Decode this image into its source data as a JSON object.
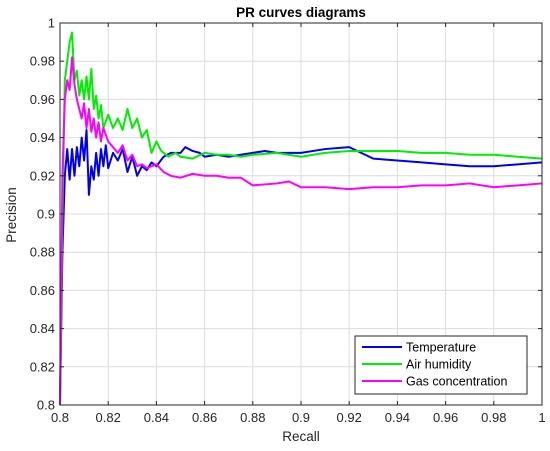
{
  "chart_data": {
    "type": "line",
    "title": "PR curves diagrams",
    "xlabel": "Recall",
    "ylabel": "Precision",
    "xlim": [
      0.8,
      1.0
    ],
    "ylim": [
      0.8,
      1.0
    ],
    "grid": true,
    "legend_position": "bottom-right",
    "x_ticks": [
      0.8,
      0.82,
      0.84,
      0.86,
      0.88,
      0.9,
      0.92,
      0.94,
      0.96,
      0.98,
      1.0
    ],
    "x_tick_labels": [
      "0.8",
      "0.82",
      "0.84",
      "0.86",
      "0.88",
      "0.9",
      "0.92",
      "0.94",
      "0.96",
      "0.98",
      "1"
    ],
    "y_ticks": [
      0.8,
      0.82,
      0.84,
      0.86,
      0.88,
      0.9,
      0.92,
      0.94,
      0.96,
      0.98,
      1.0
    ],
    "y_tick_labels": [
      "0.8",
      "0.82",
      "0.84",
      "0.86",
      "0.88",
      "0.9",
      "0.92",
      "0.94",
      "0.96",
      "0.98",
      "1"
    ],
    "series": [
      {
        "name": "Temperature",
        "color": "#0000ee",
        "points": [
          [
            0.8,
            0.8
          ],
          [
            0.801,
            0.88
          ],
          [
            0.802,
            0.92
          ],
          [
            0.803,
            0.934
          ],
          [
            0.804,
            0.918
          ],
          [
            0.805,
            0.934
          ],
          [
            0.806,
            0.92
          ],
          [
            0.807,
            0.935
          ],
          [
            0.808,
            0.925
          ],
          [
            0.809,
            0.94
          ],
          [
            0.81,
            0.928
          ],
          [
            0.811,
            0.944
          ],
          [
            0.812,
            0.91
          ],
          [
            0.813,
            0.925
          ],
          [
            0.814,
            0.918
          ],
          [
            0.815,
            0.932
          ],
          [
            0.816,
            0.92
          ],
          [
            0.817,
            0.934
          ],
          [
            0.818,
            0.925
          ],
          [
            0.819,
            0.936
          ],
          [
            0.82,
            0.924
          ],
          [
            0.822,
            0.932
          ],
          [
            0.824,
            0.928
          ],
          [
            0.826,
            0.934
          ],
          [
            0.828,
            0.922
          ],
          [
            0.83,
            0.93
          ],
          [
            0.832,
            0.92
          ],
          [
            0.834,
            0.925
          ],
          [
            0.836,
            0.923
          ],
          [
            0.838,
            0.927
          ],
          [
            0.84,
            0.925
          ],
          [
            0.843,
            0.93
          ],
          [
            0.846,
            0.932
          ],
          [
            0.85,
            0.932
          ],
          [
            0.852,
            0.935
          ],
          [
            0.855,
            0.933
          ],
          [
            0.858,
            0.932
          ],
          [
            0.86,
            0.93
          ],
          [
            0.865,
            0.931
          ],
          [
            0.87,
            0.93
          ],
          [
            0.875,
            0.931
          ],
          [
            0.88,
            0.932
          ],
          [
            0.885,
            0.933
          ],
          [
            0.89,
            0.932
          ],
          [
            0.9,
            0.932
          ],
          [
            0.91,
            0.934
          ],
          [
            0.92,
            0.935
          ],
          [
            0.925,
            0.932
          ],
          [
            0.93,
            0.929
          ],
          [
            0.94,
            0.928
          ],
          [
            0.95,
            0.927
          ],
          [
            0.96,
            0.926
          ],
          [
            0.97,
            0.925
          ],
          [
            0.98,
            0.925
          ],
          [
            0.99,
            0.926
          ],
          [
            1.0,
            0.927
          ]
        ]
      },
      {
        "name": "Air humidity",
        "color": "#00ee00",
        "points": [
          [
            0.8,
            0.8
          ],
          [
            0.801,
            0.9
          ],
          [
            0.802,
            0.97
          ],
          [
            0.803,
            0.98
          ],
          [
            0.804,
            0.99
          ],
          [
            0.805,
            0.995
          ],
          [
            0.806,
            0.97
          ],
          [
            0.807,
            0.975
          ],
          [
            0.808,
            0.962
          ],
          [
            0.809,
            0.97
          ],
          [
            0.81,
            0.96
          ],
          [
            0.811,
            0.972
          ],
          [
            0.812,
            0.96
          ],
          [
            0.813,
            0.976
          ],
          [
            0.814,
            0.955
          ],
          [
            0.815,
            0.962
          ],
          [
            0.816,
            0.95
          ],
          [
            0.817,
            0.957
          ],
          [
            0.818,
            0.945
          ],
          [
            0.82,
            0.952
          ],
          [
            0.822,
            0.945
          ],
          [
            0.824,
            0.95
          ],
          [
            0.826,
            0.944
          ],
          [
            0.828,
            0.955
          ],
          [
            0.83,
            0.945
          ],
          [
            0.832,
            0.95
          ],
          [
            0.834,
            0.94
          ],
          [
            0.836,
            0.944
          ],
          [
            0.838,
            0.932
          ],
          [
            0.84,
            0.938
          ],
          [
            0.842,
            0.933
          ],
          [
            0.845,
            0.93
          ],
          [
            0.848,
            0.932
          ],
          [
            0.85,
            0.93
          ],
          [
            0.855,
            0.929
          ],
          [
            0.86,
            0.932
          ],
          [
            0.865,
            0.931
          ],
          [
            0.87,
            0.931
          ],
          [
            0.875,
            0.93
          ],
          [
            0.88,
            0.931
          ],
          [
            0.89,
            0.932
          ],
          [
            0.9,
            0.93
          ],
          [
            0.91,
            0.932
          ],
          [
            0.92,
            0.933
          ],
          [
            0.93,
            0.933
          ],
          [
            0.94,
            0.933
          ],
          [
            0.95,
            0.932
          ],
          [
            0.96,
            0.932
          ],
          [
            0.97,
            0.931
          ],
          [
            0.98,
            0.931
          ],
          [
            0.99,
            0.93
          ],
          [
            1.0,
            0.929
          ]
        ]
      },
      {
        "name": "Gas concentration",
        "color": "#ff00ff",
        "points": [
          [
            0.8,
            0.8
          ],
          [
            0.801,
            0.92
          ],
          [
            0.802,
            0.96
          ],
          [
            0.803,
            0.97
          ],
          [
            0.804,
            0.965
          ],
          [
            0.805,
            0.982
          ],
          [
            0.806,
            0.968
          ],
          [
            0.807,
            0.96
          ],
          [
            0.808,
            0.955
          ],
          [
            0.809,
            0.95
          ],
          [
            0.81,
            0.958
          ],
          [
            0.811,
            0.945
          ],
          [
            0.812,
            0.955
          ],
          [
            0.813,
            0.943
          ],
          [
            0.814,
            0.95
          ],
          [
            0.815,
            0.94
          ],
          [
            0.816,
            0.948
          ],
          [
            0.817,
            0.938
          ],
          [
            0.818,
            0.945
          ],
          [
            0.82,
            0.938
          ],
          [
            0.822,
            0.935
          ],
          [
            0.824,
            0.932
          ],
          [
            0.826,
            0.936
          ],
          [
            0.828,
            0.928
          ],
          [
            0.83,
            0.931
          ],
          [
            0.832,
            0.925
          ],
          [
            0.834,
            0.926
          ],
          [
            0.836,
            0.924
          ],
          [
            0.838,
            0.925
          ],
          [
            0.84,
            0.926
          ],
          [
            0.843,
            0.922
          ],
          [
            0.846,
            0.92
          ],
          [
            0.85,
            0.919
          ],
          [
            0.855,
            0.921
          ],
          [
            0.86,
            0.92
          ],
          [
            0.865,
            0.92
          ],
          [
            0.87,
            0.919
          ],
          [
            0.875,
            0.919
          ],
          [
            0.88,
            0.915
          ],
          [
            0.89,
            0.916
          ],
          [
            0.895,
            0.917
          ],
          [
            0.9,
            0.914
          ],
          [
            0.91,
            0.914
          ],
          [
            0.92,
            0.913
          ],
          [
            0.93,
            0.914
          ],
          [
            0.94,
            0.914
          ],
          [
            0.95,
            0.915
          ],
          [
            0.96,
            0.915
          ],
          [
            0.97,
            0.916
          ],
          [
            0.98,
            0.914
          ],
          [
            0.99,
            0.915
          ],
          [
            1.0,
            0.916
          ]
        ]
      }
    ]
  }
}
